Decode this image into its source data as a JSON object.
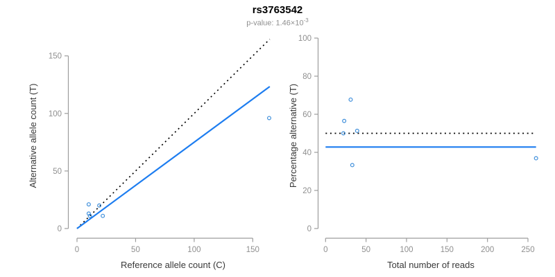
{
  "header": {
    "title": "rs3763542",
    "subtitle_base": "p-value: 1.46×10",
    "subtitle_exponent": "-3"
  },
  "chart_data": [
    {
      "type": "scatter",
      "panel": "left",
      "xlabel": "Reference allele count (C)",
      "ylabel": "Alternative allele count (T)",
      "xticks": [
        0,
        50,
        100,
        150
      ],
      "yticks": [
        0,
        50,
        100,
        150
      ],
      "xlim": [
        0,
        165
      ],
      "ylim": [
        0,
        165
      ],
      "grid": false,
      "points": [
        [
          10,
          21
        ],
        [
          19,
          20
        ],
        [
          10,
          13
        ],
        [
          11,
          11
        ],
        [
          22,
          11
        ],
        [
          164,
          96
        ]
      ],
      "lines": [
        {
          "name": "identity-line",
          "style": "dotted",
          "color": "#000000",
          "intercept": 0,
          "slope": 1,
          "x_range": [
            0,
            164.5
          ]
        },
        {
          "name": "fit-line",
          "style": "solid",
          "color": "#1d7df0",
          "intercept": 0,
          "slope": 0.75,
          "x_range": [
            0,
            164.5
          ]
        }
      ]
    },
    {
      "type": "scatter",
      "panel": "right",
      "xlabel": "Total number of reads",
      "ylabel": "Percentage alternative (T)",
      "xticks": [
        0,
        50,
        100,
        150,
        200,
        250
      ],
      "yticks": [
        0,
        20,
        40,
        60,
        80,
        100
      ],
      "xlim": [
        0,
        260
      ],
      "ylim": [
        0,
        100
      ],
      "grid": false,
      "points": [
        [
          31,
          67.7
        ],
        [
          23,
          56.5
        ],
        [
          22,
          50
        ],
        [
          39,
          51.3
        ],
        [
          33,
          33.3
        ],
        [
          260,
          36.9
        ]
      ],
      "lines": [
        {
          "name": "expected-line",
          "style": "dotted",
          "color": "#000000",
          "intercept": 50,
          "slope": 0,
          "x_range": [
            0,
            260
          ]
        },
        {
          "name": "fit-line",
          "style": "solid",
          "color": "#1d7df0",
          "intercept": 42.8,
          "slope": 0,
          "x_range": [
            0,
            260
          ]
        }
      ]
    }
  ],
  "style": {
    "point_color": "#3f8fdb",
    "fit_line_color": "#1d7df0",
    "dotted_line_color": "#000000",
    "axis_color": "#9c9c9c",
    "tick_label_color": "#8f8f8f",
    "axis_title_color": "#383838",
    "title_color": "#000000",
    "subtitle_color": "#8f8f8f"
  }
}
